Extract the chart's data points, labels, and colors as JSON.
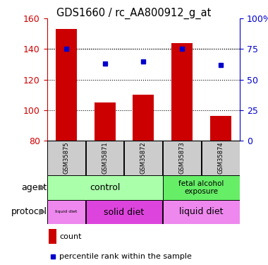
{
  "title": "GDS1660 / rc_AA800912_g_at",
  "samples": [
    "GSM35875",
    "GSM35871",
    "GSM35872",
    "GSM35873",
    "GSM35874"
  ],
  "counts": [
    153,
    105,
    110,
    144,
    96
  ],
  "percentiles": [
    75,
    63,
    65,
    75,
    62
  ],
  "ylim_left": [
    80,
    160
  ],
  "ylim_right": [
    0,
    100
  ],
  "yticks_left": [
    80,
    100,
    120,
    140,
    160
  ],
  "yticks_right": [
    0,
    25,
    50,
    75,
    100
  ],
  "yticklabels_right": [
    "0",
    "25",
    "50",
    "75",
    "100%"
  ],
  "bar_color": "#cc0000",
  "dot_color": "#0000cc",
  "bar_width": 0.55,
  "control_color": "#aaffaa",
  "fetal_color": "#66ee66",
  "liquid_diet_color": "#ee88ee",
  "solid_diet_color": "#dd44dd",
  "tick_color_left": "#cc0000",
  "tick_color_right": "#0000cc",
  "sample_box_color": "#cccccc",
  "grid_color": "black"
}
